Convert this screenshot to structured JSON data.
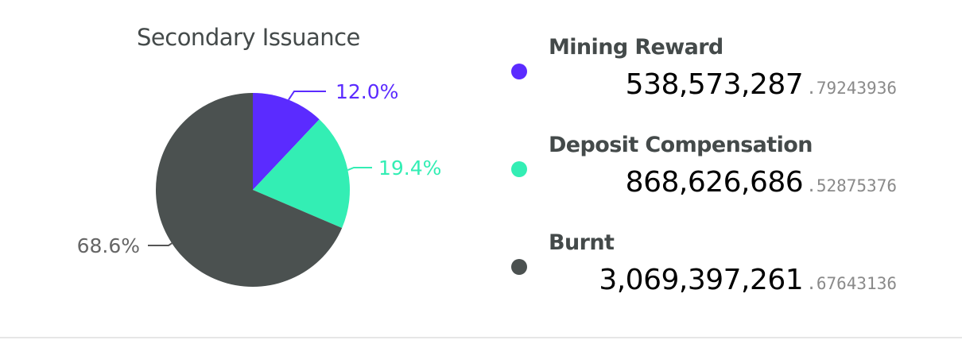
{
  "chart_data": {
    "type": "pie",
    "title": "Secondary Issuance",
    "slices": [
      {
        "name": "Mining Reward",
        "percent_label": "12.0%",
        "value_int": "538,573,287",
        "value_frac": ".79243936",
        "color": "#5b2bff"
      },
      {
        "name": "Deposit Compensation",
        "percent_label": "19.4%",
        "value_int": "868,626,686",
        "value_frac": ".52875376",
        "color": "#33eeb4"
      },
      {
        "name": "Burnt",
        "percent_label": "68.6%",
        "value_int": "3,069,397,261",
        "value_frac": ".67643136",
        "color": "#4b5150"
      }
    ],
    "values": [
      538573287.7924393,
      868626686.5287538,
      3069397261.676431
    ],
    "legend_placement": "right"
  }
}
